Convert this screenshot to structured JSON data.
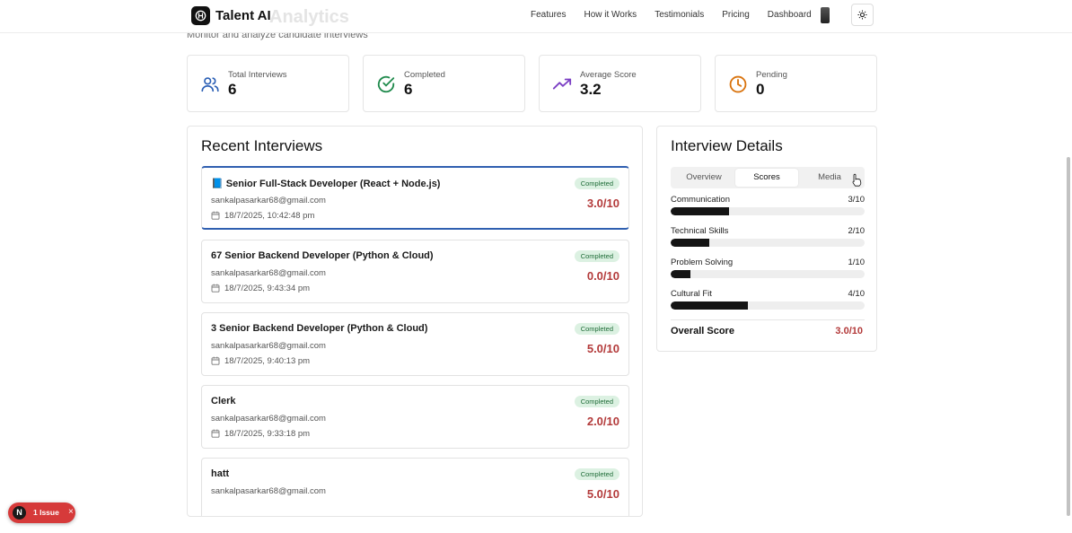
{
  "nav": {
    "brand": "Talent AI",
    "links": [
      "Features",
      "How it Works",
      "Testimonials",
      "Pricing",
      "Dashboard"
    ],
    "page_title_behind": "Analytics"
  },
  "page": {
    "subtitle": "Monitor and analyze candidate interviews"
  },
  "stats": [
    {
      "label": "Total Interviews",
      "value": "6",
      "icon": "users-icon",
      "color": "#2b5fb5"
    },
    {
      "label": "Completed",
      "value": "6",
      "icon": "check-circle-icon",
      "color": "#1f8a4c"
    },
    {
      "label": "Average Score",
      "value": "3.2",
      "icon": "trending-up-icon",
      "color": "#7b3fc4"
    },
    {
      "label": "Pending",
      "value": "0",
      "icon": "clock-icon",
      "color": "#d9730d"
    }
  ],
  "recent": {
    "title": "Recent Interviews",
    "items": [
      {
        "title": "Senior Full-Stack Developer (React + Node.js)",
        "emoji": "📘",
        "email": "sankalpasarkar68@gmail.com",
        "date": "18/7/2025, 10:42:48 pm",
        "status": "Completed",
        "score": "3.0/10",
        "selected": true
      },
      {
        "title": "67 Senior Backend Developer (Python & Cloud)",
        "email": "sankalpasarkar68@gmail.com",
        "date": "18/7/2025, 9:43:34 pm",
        "status": "Completed",
        "score": "0.0/10"
      },
      {
        "title": "3 Senior Backend Developer (Python & Cloud)",
        "email": "sankalpasarkar68@gmail.com",
        "date": "18/7/2025, 9:40:13 pm",
        "status": "Completed",
        "score": "5.0/10"
      },
      {
        "title": "Clerk",
        "email": "sankalpasarkar68@gmail.com",
        "date": "18/7/2025, 9:33:18 pm",
        "status": "Completed",
        "score": "2.0/10"
      },
      {
        "title": "hatt",
        "email": "sankalpasarkar68@gmail.com",
        "date": "",
        "status": "Completed",
        "score": "5.0/10"
      }
    ]
  },
  "details": {
    "title": "Interview Details",
    "tabs": [
      "Overview",
      "Scores",
      "Media"
    ],
    "active_tab": "Scores",
    "scores": [
      {
        "name": "Communication",
        "value": "3/10",
        "fraction": 0.3
      },
      {
        "name": "Technical Skills",
        "value": "2/10",
        "fraction": 0.2
      },
      {
        "name": "Problem Solving",
        "value": "1/10",
        "fraction": 0.1
      },
      {
        "name": "Cultural Fit",
        "value": "4/10",
        "fraction": 0.4
      }
    ],
    "overall_label": "Overall Score",
    "overall_value": "3.0/10"
  },
  "issue_pill": {
    "logo": "N",
    "text": "1 Issue",
    "close": "×"
  }
}
